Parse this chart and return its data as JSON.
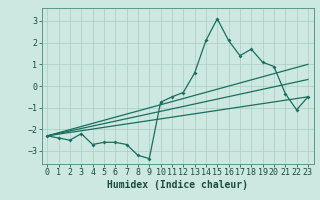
{
  "xlabel": "Humidex (Indice chaleur)",
  "ylabel": "",
  "background_color": "#cce8e0",
  "grid_color": "#aaccc4",
  "line_color": "#1a6e60",
  "xlim": [
    -0.5,
    23.5
  ],
  "ylim": [
    -3.6,
    3.6
  ],
  "xticks": [
    0,
    1,
    2,
    3,
    4,
    5,
    6,
    7,
    8,
    9,
    10,
    11,
    12,
    13,
    14,
    15,
    16,
    17,
    18,
    19,
    20,
    21,
    22,
    23
  ],
  "yticks": [
    -3,
    -2,
    -1,
    0,
    1,
    2,
    3
  ],
  "main_x": [
    0,
    1,
    2,
    3,
    4,
    5,
    6,
    7,
    8,
    9,
    10,
    11,
    12,
    13,
    14,
    15,
    16,
    17,
    18,
    19,
    20,
    21,
    22,
    23
  ],
  "main_y": [
    -2.3,
    -2.4,
    -2.5,
    -2.2,
    -2.7,
    -2.6,
    -2.6,
    -2.7,
    -3.2,
    -3.35,
    -0.75,
    -0.5,
    -0.3,
    0.6,
    2.1,
    3.1,
    2.1,
    1.4,
    1.7,
    1.1,
    0.9,
    -0.35,
    -1.1,
    -0.5
  ],
  "reg_line1_x": [
    0,
    23
  ],
  "reg_line1_y": [
    -2.3,
    1.0
  ],
  "reg_line2_x": [
    0,
    23
  ],
  "reg_line2_y": [
    -2.3,
    0.3
  ],
  "reg_line3_x": [
    0,
    23
  ],
  "reg_line3_y": [
    -2.3,
    -0.5
  ],
  "tick_fontsize": 6,
  "xlabel_fontsize": 7
}
